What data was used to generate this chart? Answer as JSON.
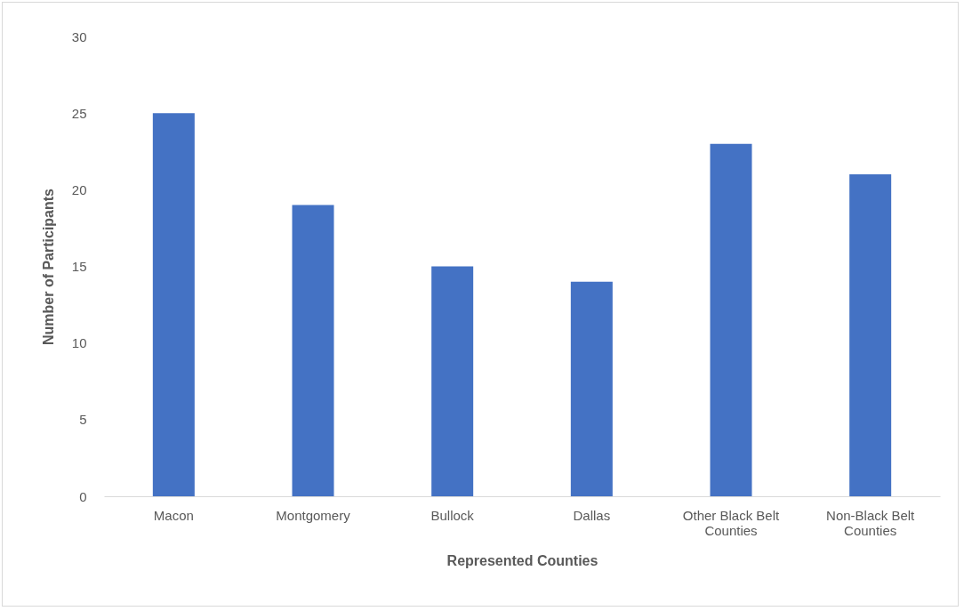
{
  "chart_data": {
    "type": "bar",
    "xlabel": "Represented Counties",
    "ylabel": "Number of Participants",
    "categories": [
      "Macon",
      "Montgomery",
      "Bullock",
      "Dallas",
      "Other Black Belt Counties",
      "Non-Black Belt Counties"
    ],
    "values": [
      25,
      19,
      15,
      14,
      23,
      21
    ],
    "color": "#4472c4",
    "ylim": [
      0,
      30
    ],
    "yticks": [
      0,
      5,
      10,
      15,
      20,
      25,
      30
    ],
    "grid": false
  }
}
